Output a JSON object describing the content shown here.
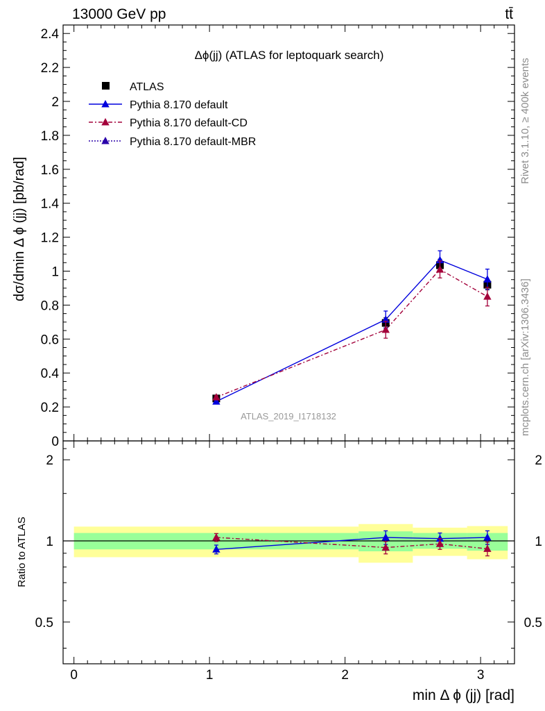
{
  "header": {
    "energy_label": "13000 GeV pp",
    "process_label": "tt̄"
  },
  "side_labels": {
    "rivet": "Rivet 3.1.10, ≥ 400k events",
    "source": "mcplots.cern.ch [arXiv:1306.3436]"
  },
  "chart_data": {
    "type": "line",
    "title": "Δϕ(jj) (ATLAS for leptoquark search)",
    "ylabel": "dσ/dmin Δ ϕ (jj) [pb/rad]",
    "xlabel": "min Δ ϕ (jj) [rad]",
    "watermark": "ATLAS_2019_I1718132",
    "xlim": [
      -0.08,
      3.25
    ],
    "ylim": [
      0,
      2.45
    ],
    "x_ticks": [
      "0",
      "1",
      "2",
      "3"
    ],
    "y_ticks": [
      "0",
      "0.2",
      "0.4",
      "0.6",
      "0.8",
      "1",
      "1.2",
      "1.4",
      "1.6",
      "1.8",
      "2",
      "2.2",
      "2.4"
    ],
    "legend": {
      "placement": "top-left",
      "entries": [
        "ATLAS",
        "Pythia 8.170 default",
        "Pythia 8.170 default-CD",
        "Pythia 8.170 default-MBR"
      ]
    },
    "colors": {
      "data": "#000000",
      "default": "#0000dd",
      "cd": "#a3003a",
      "mbr": "#2a00aa",
      "band_inner": "#99ff99",
      "band_outer": "#ffff99"
    },
    "bins": [
      {
        "lo": 0.0,
        "hi": 2.1
      },
      {
        "lo": 2.1,
        "hi": 2.5
      },
      {
        "lo": 2.5,
        "hi": 2.9
      },
      {
        "lo": 2.9,
        "hi": 3.2
      }
    ],
    "data": {
      "name": "ATLAS",
      "x": [
        1.05,
        2.3,
        2.7,
        3.05
      ],
      "y": [
        0.25,
        0.695,
        1.035,
        0.92
      ],
      "err": [
        0.012,
        0.03,
        0.035,
        0.03
      ]
    },
    "series": [
      {
        "name": "Pythia 8.170 default",
        "x": [
          1.05,
          2.3,
          2.7,
          3.05
        ],
        "y": [
          0.232,
          0.715,
          1.065,
          0.952
        ],
        "err": [
          0.008,
          0.05,
          0.055,
          0.06
        ],
        "style": "solid"
      },
      {
        "name": "Pythia 8.170 default-CD",
        "x": [
          1.05,
          2.3,
          2.7,
          3.05
        ],
        "y": [
          0.257,
          0.655,
          1.01,
          0.85
        ],
        "err": [
          0.009,
          0.05,
          0.05,
          0.055
        ],
        "style": "dashdot"
      }
    ],
    "ratio": {
      "ylabel": "Ratio to ATLAS",
      "ylim_log": [
        0.35,
        2.35
      ],
      "y_ticks": [
        "0.5",
        "1",
        "2"
      ],
      "reference": 1.0,
      "bands_inner": [
        [
          0.93,
          1.07
        ],
        [
          0.915,
          1.085
        ],
        [
          0.935,
          1.07
        ],
        [
          0.92,
          1.07
        ]
      ],
      "bands_outer": [
        [
          0.87,
          1.13
        ],
        [
          0.83,
          1.155
        ],
        [
          0.88,
          1.12
        ],
        [
          0.855,
          1.135
        ]
      ],
      "series": [
        {
          "name": "Pythia 8.170 default",
          "y": [
            0.93,
            1.03,
            1.02,
            1.03
          ],
          "err": [
            0.035,
            0.06,
            0.05,
            0.06
          ]
        },
        {
          "name": "Pythia 8.170 default-CD",
          "y": [
            1.03,
            0.945,
            0.975,
            0.935
          ],
          "err": [
            0.035,
            0.05,
            0.045,
            0.055
          ]
        }
      ]
    }
  }
}
